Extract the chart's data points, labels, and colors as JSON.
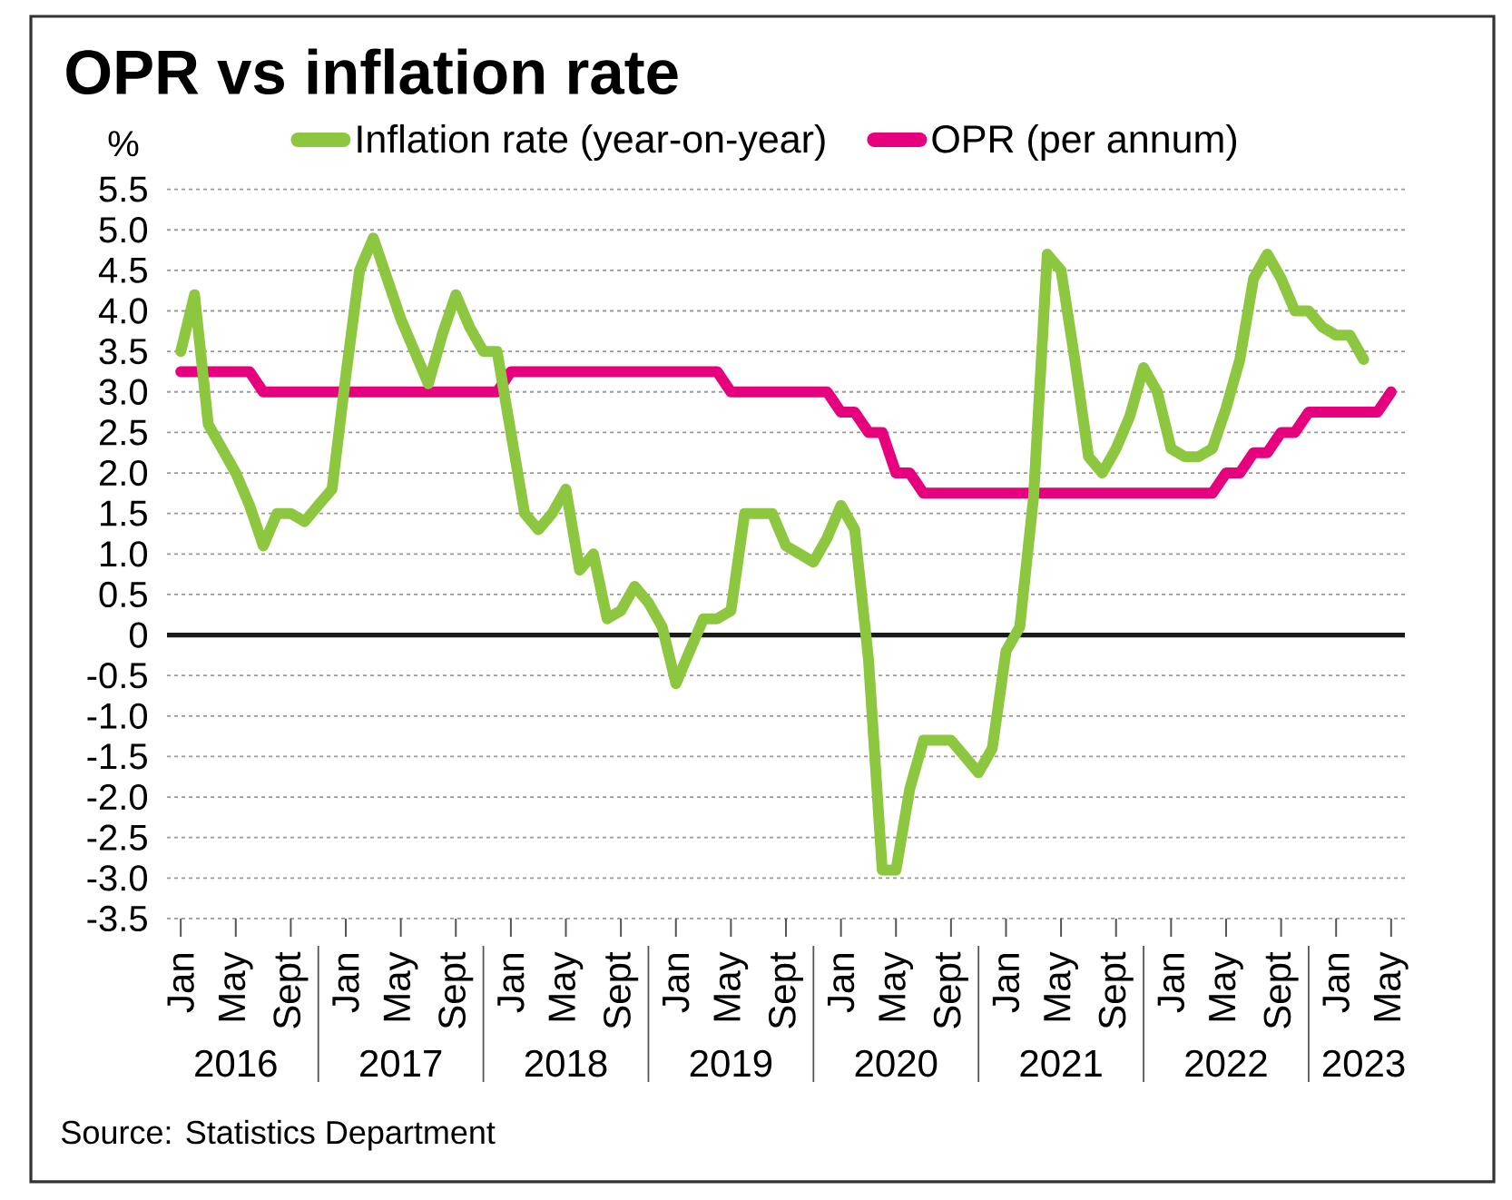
{
  "chart_data": {
    "type": "line",
    "title": "OPR vs inflation rate",
    "ylabel": "%",
    "x": [
      "2016-01",
      "2016-02",
      "2016-03",
      "2016-04",
      "2016-05",
      "2016-06",
      "2016-07",
      "2016-08",
      "2016-09",
      "2016-10",
      "2016-11",
      "2016-12",
      "2017-01",
      "2017-02",
      "2017-03",
      "2017-04",
      "2017-05",
      "2017-06",
      "2017-07",
      "2017-08",
      "2017-09",
      "2017-10",
      "2017-11",
      "2017-12",
      "2018-01",
      "2018-02",
      "2018-03",
      "2018-04",
      "2018-05",
      "2018-06",
      "2018-07",
      "2018-08",
      "2018-09",
      "2018-10",
      "2018-11",
      "2018-12",
      "2019-01",
      "2019-02",
      "2019-03",
      "2019-04",
      "2019-05",
      "2019-06",
      "2019-07",
      "2019-08",
      "2019-09",
      "2019-10",
      "2019-11",
      "2019-12",
      "2020-01",
      "2020-02",
      "2020-03",
      "2020-04",
      "2020-05",
      "2020-06",
      "2020-07",
      "2020-08",
      "2020-09",
      "2020-10",
      "2020-11",
      "2020-12",
      "2021-01",
      "2021-02",
      "2021-03",
      "2021-04",
      "2021-05",
      "2021-06",
      "2021-07",
      "2021-08",
      "2021-09",
      "2021-10",
      "2021-11",
      "2021-12",
      "2022-01",
      "2022-02",
      "2022-03",
      "2022-04",
      "2022-05",
      "2022-06",
      "2022-07",
      "2022-08",
      "2022-09",
      "2022-10",
      "2022-11",
      "2022-12",
      "2023-01",
      "2023-02",
      "2023-03",
      "2023-04",
      "2023-05"
    ],
    "series": [
      {
        "name": "Inflation rate (year-on-year)",
        "color": "#8dc63f",
        "values": [
          3.5,
          4.2,
          2.6,
          2.3,
          2.0,
          1.6,
          1.1,
          1.5,
          1.5,
          1.4,
          1.6,
          1.8,
          3.2,
          4.5,
          4.9,
          4.4,
          3.9,
          3.5,
          3.1,
          3.7,
          4.2,
          3.8,
          3.5,
          3.5,
          2.5,
          1.5,
          1.3,
          1.5,
          1.8,
          0.8,
          1.0,
          0.2,
          0.3,
          0.6,
          0.4,
          0.1,
          -0.6,
          -0.2,
          0.2,
          0.2,
          0.3,
          1.5,
          1.5,
          1.5,
          1.1,
          1.0,
          0.9,
          1.2,
          1.6,
          1.3,
          -0.3,
          -2.9,
          -2.9,
          -1.9,
          -1.3,
          -1.3,
          -1.3,
          -1.5,
          -1.7,
          -1.4,
          -0.2,
          0.1,
          1.7,
          4.7,
          4.5,
          3.4,
          2.2,
          2.0,
          2.3,
          2.7,
          3.3,
          3.0,
          2.3,
          2.2,
          2.2,
          2.3,
          2.8,
          3.4,
          4.4,
          4.7,
          4.4,
          4.0,
          4.0,
          3.8,
          3.7,
          3.7,
          3.4,
          null,
          null
        ]
      },
      {
        "name": "OPR (per annum)",
        "color": "#e6007e",
        "values": [
          3.25,
          3.25,
          3.25,
          3.25,
          3.25,
          3.25,
          3.0,
          3.0,
          3.0,
          3.0,
          3.0,
          3.0,
          3.0,
          3.0,
          3.0,
          3.0,
          3.0,
          3.0,
          3.0,
          3.0,
          3.0,
          3.0,
          3.0,
          3.0,
          3.25,
          3.25,
          3.25,
          3.25,
          3.25,
          3.25,
          3.25,
          3.25,
          3.25,
          3.25,
          3.25,
          3.25,
          3.25,
          3.25,
          3.25,
          3.25,
          3.0,
          3.0,
          3.0,
          3.0,
          3.0,
          3.0,
          3.0,
          3.0,
          2.75,
          2.75,
          2.5,
          2.5,
          2.0,
          2.0,
          1.75,
          1.75,
          1.75,
          1.75,
          1.75,
          1.75,
          1.75,
          1.75,
          1.75,
          1.75,
          1.75,
          1.75,
          1.75,
          1.75,
          1.75,
          1.75,
          1.75,
          1.75,
          1.75,
          1.75,
          1.75,
          1.75,
          2.0,
          2.0,
          2.25,
          2.25,
          2.5,
          2.5,
          2.75,
          2.75,
          2.75,
          2.75,
          2.75,
          2.75,
          3.0
        ]
      }
    ],
    "xlim": [
      "2015-12",
      "2023-06"
    ],
    "xticks": [
      {
        "value": "2016-01",
        "label": "Jan"
      },
      {
        "value": "2016-05",
        "label": "May"
      },
      {
        "value": "2016-09",
        "label": "Sept"
      },
      {
        "value": "2017-01",
        "label": "Jan"
      },
      {
        "value": "2017-05",
        "label": "May"
      },
      {
        "value": "2017-09",
        "label": "Sept"
      },
      {
        "value": "2018-01",
        "label": "Jan"
      },
      {
        "value": "2018-05",
        "label": "May"
      },
      {
        "value": "2018-09",
        "label": "Sept"
      },
      {
        "value": "2019-01",
        "label": "Jan"
      },
      {
        "value": "2019-05",
        "label": "May"
      },
      {
        "value": "2019-09",
        "label": "Sept"
      },
      {
        "value": "2020-01",
        "label": "Jan"
      },
      {
        "value": "2020-05",
        "label": "May"
      },
      {
        "value": "2020-09",
        "label": "Sept"
      },
      {
        "value": "2021-01",
        "label": "Jan"
      },
      {
        "value": "2021-05",
        "label": "May"
      },
      {
        "value": "2021-09",
        "label": "Sept"
      },
      {
        "value": "2022-01",
        "label": "Jan"
      },
      {
        "value": "2022-05",
        "label": "May"
      },
      {
        "value": "2022-09",
        "label": "Sept"
      },
      {
        "value": "2023-01",
        "label": "Jan"
      },
      {
        "value": "2023-05",
        "label": "May"
      }
    ],
    "ylim": [
      -3.5,
      5.5
    ],
    "yticks": [
      -3.5,
      {
        "value": -3,
        "label": "-3.0"
      },
      -2.5,
      {
        "value": -2,
        "label": "-2.0"
      },
      -1.5,
      {
        "value": -1,
        "label": "-1.0"
      },
      -0.5,
      0,
      0.5,
      {
        "value": 1,
        "label": "1.0"
      },
      1.5,
      {
        "value": 2,
        "label": "2.0"
      },
      2.5,
      {
        "value": 3,
        "label": "3.0"
      },
      3.5,
      {
        "value": 4,
        "label": "4.0"
      },
      4.5,
      {
        "value": 5,
        "label": "5.0"
      },
      5.5
    ],
    "grid": "y",
    "legend": "top",
    "ref_lines": [
      {
        "axis": "y",
        "value": 0,
        "color": "#1a1a1a"
      }
    ],
    "annotations": [
      "2016",
      "2017",
      "2018",
      "2019",
      "2020",
      "2021",
      "2022",
      "2023",
      "Source: Statistics Department"
    ]
  }
}
